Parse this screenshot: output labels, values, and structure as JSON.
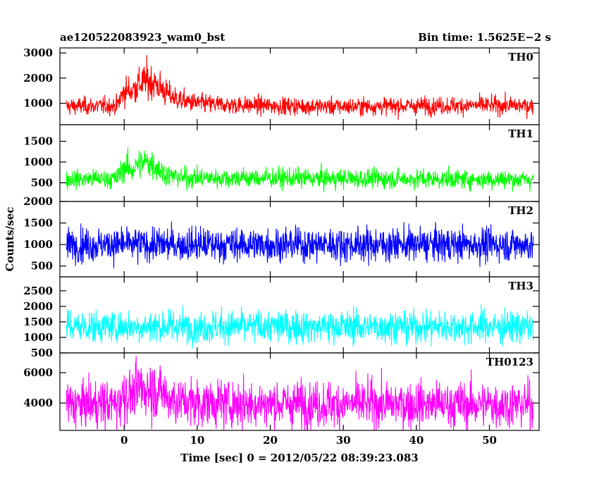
{
  "header": {
    "title": "ae120522083923_wam0_bst",
    "bin_time": "Bin time: 1.5625E−2 s"
  },
  "chart_data": {
    "type": "line",
    "xlabel": "Time [sec] 0 = 2012/05/22 08:39:23.083",
    "ylabel": "Counts/sec",
    "xlim": [
      -8.8,
      56.8
    ],
    "x_data_range": [
      -7.9,
      56.0
    ],
    "x_ticks": [
      0,
      10,
      20,
      30,
      40,
      50
    ],
    "x_tick_labels": [
      "0",
      "10",
      "20",
      "30",
      "40",
      "50"
    ],
    "grid": false,
    "panels": [
      {
        "name": "TH0",
        "color": "#ff0000",
        "ylim": [
          150,
          3200
        ],
        "y_ticks": [
          1000,
          2000,
          3000
        ],
        "y_tick_labels": [
          "1000",
          "2000",
          "3000"
        ],
        "baseline": 880,
        "profile_x": [
          -8,
          -1,
          0,
          1,
          2,
          3,
          4,
          5,
          6,
          7,
          8,
          10,
          13,
          20,
          30,
          40,
          50,
          56
        ],
        "profile_y": [
          880,
          900,
          1500,
          1500,
          1750,
          1900,
          1850,
          1600,
          1350,
          1200,
          1100,
          1000,
          950,
          900,
          870,
          900,
          920,
          900
        ]
      },
      {
        "name": "TH1",
        "color": "#00ff00",
        "ylim": [
          50,
          1900
        ],
        "y_ticks": [
          500,
          1000,
          1500
        ],
        "y_tick_labels": [
          "500",
          "1000",
          "1500"
        ],
        "baseline": 580,
        "profile_x": [
          -8,
          -1,
          0,
          1,
          2,
          3,
          4,
          5,
          6,
          8,
          56
        ],
        "profile_y": [
          580,
          600,
          900,
          800,
          950,
          1000,
          950,
          800,
          680,
          620,
          580
        ]
      },
      {
        "name": "TH2",
        "color": "#0000ff",
        "ylim": [
          250,
          2000
        ],
        "y_ticks": [
          500,
          1000,
          1500,
          2000
        ],
        "y_tick_labels": [
          "500",
          "1000",
          "1500",
          "2000"
        ],
        "baseline": 1000,
        "profile_x": [
          -8,
          56
        ],
        "profile_y": [
          1000,
          1000
        ]
      },
      {
        "name": "TH3",
        "color": "#00ffff",
        "ylim": [
          500,
          2950
        ],
        "y_ticks": [
          500,
          1000,
          1500,
          2000,
          2500
        ],
        "y_tick_labels": [
          "500",
          "1000",
          "1500",
          "2000",
          "2500"
        ],
        "baseline": 1350,
        "profile_x": [
          -8,
          56
        ],
        "profile_y": [
          1350,
          1350
        ]
      },
      {
        "name": "TH0123",
        "color": "#ff00ff",
        "ylim": [
          2200,
          7300
        ],
        "y_ticks": [
          4000,
          6000
        ],
        "y_tick_labels": [
          "4000",
          "6000"
        ],
        "baseline": 3900,
        "profile_x": [
          -8,
          -1,
          0,
          1,
          2,
          3,
          4,
          5,
          6,
          7,
          8,
          10,
          13,
          56
        ],
        "profile_y": [
          3900,
          3950,
          4700,
          4500,
          4900,
          5000,
          4950,
          4700,
          4400,
          4200,
          4100,
          4000,
          3950,
          3900
        ]
      }
    ]
  }
}
